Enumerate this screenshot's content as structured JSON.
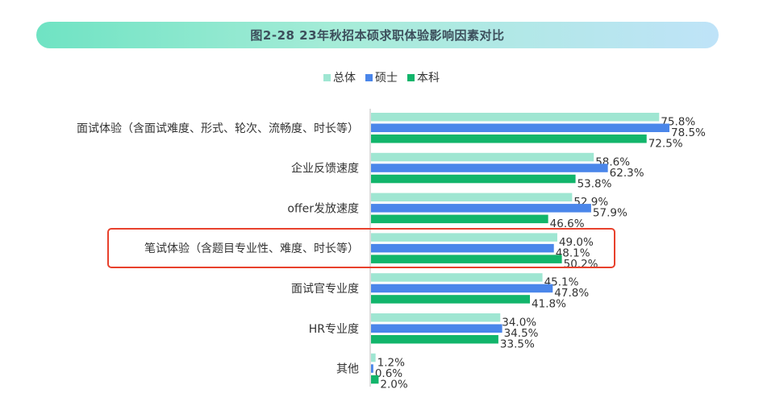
{
  "title": "图2-28 23年秋招本硕求职体验影响因素对比",
  "colors": {
    "总体": "#9fe6d2",
    "硕士": "#4a86ea",
    "本科": "#12b56b",
    "highlight": "#e8412c"
  },
  "chart_data": {
    "type": "bar",
    "orientation": "horizontal",
    "title": "图2-28 23年秋招本硕求职体验影响因素对比",
    "categories": [
      "面试体验（含面试难度、形式、轮次、流畅度、时长等）",
      "企业反馈速度",
      "offer发放速度",
      "笔试体验（含题目专业性、难度、时长等）",
      "面试官专业度",
      "HR专业度",
      "其他"
    ],
    "series": [
      {
        "name": "总体",
        "values": [
          75.8,
          58.6,
          52.9,
          49.0,
          45.1,
          34.0,
          1.2
        ],
        "labels": [
          "75.8%",
          "58.6%",
          "52.9%",
          "49.0%",
          "45.1%",
          "34.0%",
          "1.2%"
        ]
      },
      {
        "name": "硕士",
        "values": [
          78.5,
          62.3,
          57.9,
          48.1,
          47.8,
          34.5,
          0.6
        ],
        "labels": [
          "78.5%",
          "62.3%",
          "57.9%",
          "48.1%",
          "47.8%",
          "34.5%",
          "0.6%"
        ]
      },
      {
        "name": "本科",
        "values": [
          72.5,
          53.8,
          46.6,
          50.2,
          41.8,
          33.5,
          2.0
        ],
        "labels": [
          "72.5%",
          "53.8%",
          "46.6%",
          "50.2%",
          "41.8%",
          "33.5%",
          "2.0%"
        ]
      }
    ],
    "xlim": [
      0,
      80
    ],
    "legend_position": "top-center",
    "grid": false,
    "highlighted_category": "笔试体验（含题目专业性、难度、时长等）"
  }
}
